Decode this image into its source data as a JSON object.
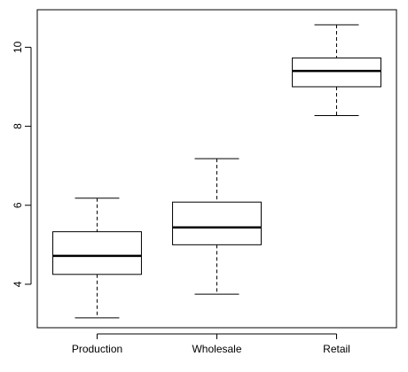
{
  "chart_data": {
    "type": "boxplot",
    "title": "",
    "xlabel": "",
    "ylabel": "",
    "categories": [
      "Production",
      "Wholesale",
      "Retail"
    ],
    "boxes": [
      {
        "category": "Production",
        "whisker_low": 3.15,
        "q1": 4.25,
        "median": 4.72,
        "q3": 5.33,
        "whisker_high": 6.18
      },
      {
        "category": "Wholesale",
        "whisker_low": 3.75,
        "q1": 5.0,
        "median": 5.44,
        "q3": 6.08,
        "whisker_high": 7.18
      },
      {
        "category": "Retail",
        "whisker_low": 8.27,
        "q1": 9.0,
        "median": 9.4,
        "q3": 9.73,
        "whisker_high": 10.57
      }
    ],
    "y_ticks": [
      4,
      6,
      8,
      10
    ],
    "ylim": [
      2.9,
      10.95
    ],
    "grid": false,
    "legend": "none",
    "colors": {
      "box_fill": "#ffffff",
      "stroke": "#000000"
    }
  }
}
